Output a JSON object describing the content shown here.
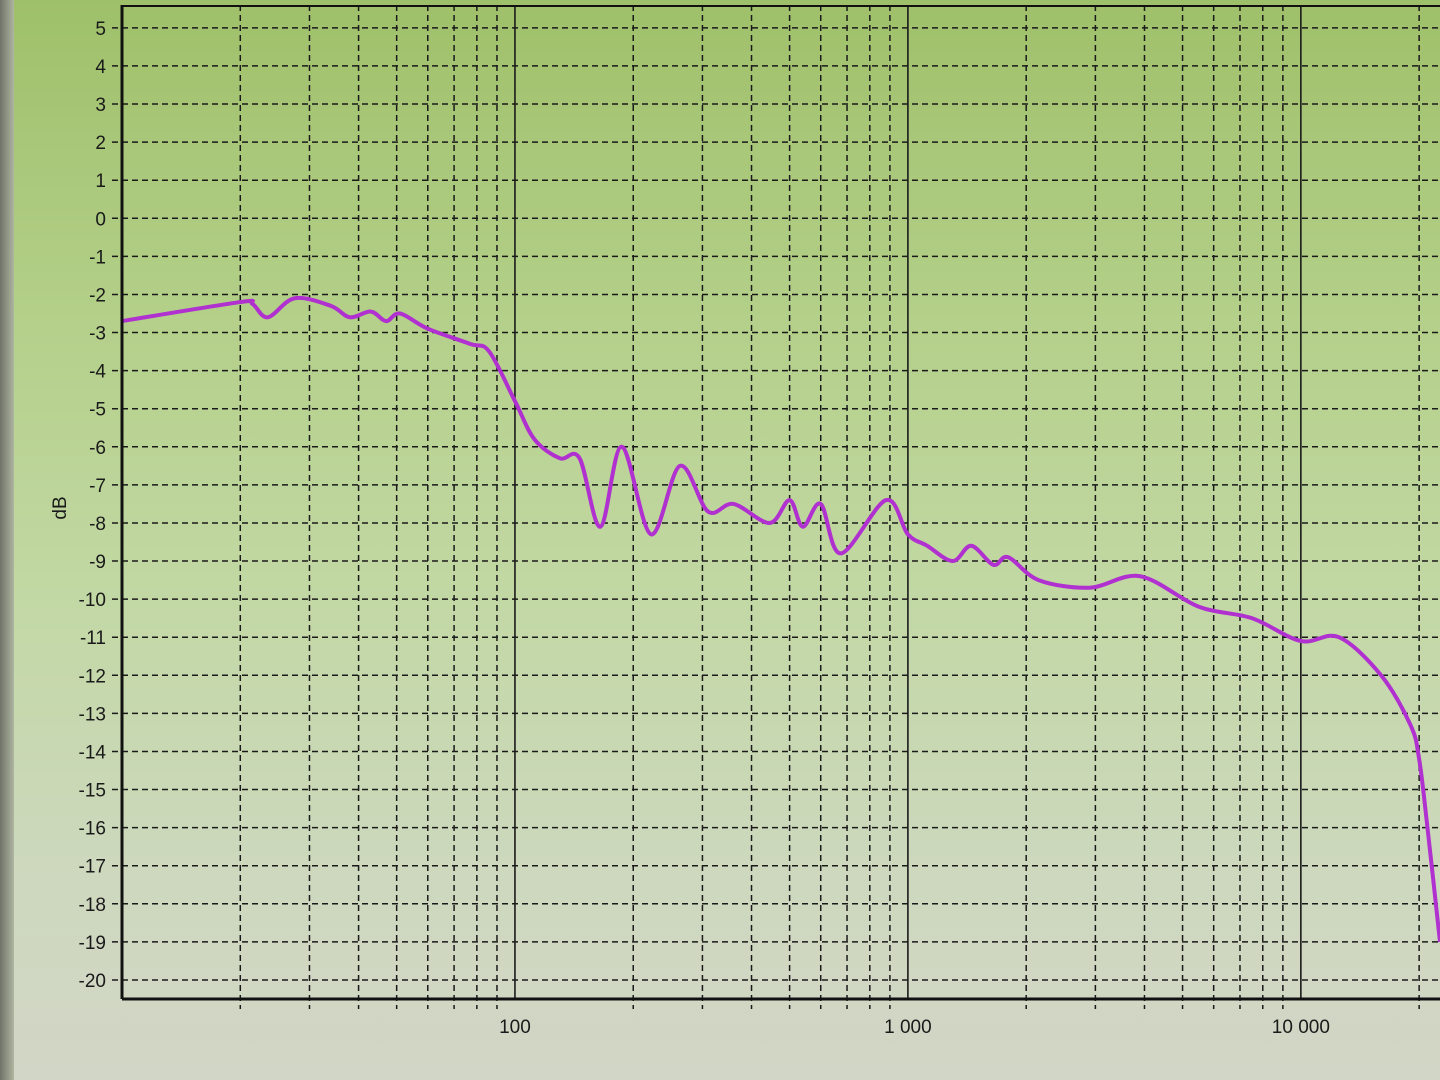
{
  "chart_data": {
    "type": "line",
    "title": "",
    "xlabel": "",
    "ylabel": "dB",
    "x_scale": "log",
    "xlim": [
      10,
      22600
    ],
    "ylim": [
      -20.5,
      5.6
    ],
    "grid": true,
    "x_tick_labels": [
      {
        "value": 100,
        "label": "100"
      },
      {
        "value": 1000,
        "label": "1 000"
      },
      {
        "value": 10000,
        "label": "10 000"
      }
    ],
    "y_ticks": [
      5,
      4,
      3,
      2,
      1,
      0,
      -1,
      -2,
      -3,
      -4,
      -5,
      -6,
      -7,
      -8,
      -9,
      -10,
      -11,
      -12,
      -13,
      -14,
      -15,
      -16,
      -17,
      -18,
      -19,
      -20
    ],
    "series": [
      {
        "color": "#b030d0",
        "x": [
          10,
          20,
          21.5,
          23.5,
          27.5,
          34,
          38,
          43,
          47,
          51,
          60,
          77,
          86,
          100,
          112,
          130,
          146,
          165,
          187,
          222,
          263,
          310,
          360,
          445,
          500,
          540,
          600,
          675,
          880,
          1000,
          1120,
          1300,
          1450,
          1650,
          1800,
          2150,
          2900,
          3900,
          5500,
          7500,
          10000,
          12500,
          16000,
          19000,
          20000,
          21000,
          22600
        ],
        "y": [
          -2.7,
          -2.2,
          -2.25,
          -2.6,
          -2.1,
          -2.3,
          -2.6,
          -2.45,
          -2.7,
          -2.5,
          -2.9,
          -3.3,
          -3.5,
          -4.8,
          -5.8,
          -6.3,
          -6.3,
          -8.1,
          -6.0,
          -8.3,
          -6.5,
          -7.7,
          -7.5,
          -8.0,
          -7.4,
          -8.1,
          -7.5,
          -8.8,
          -7.4,
          -8.3,
          -8.6,
          -9.0,
          -8.6,
          -9.1,
          -8.9,
          -9.5,
          -9.7,
          -9.4,
          -10.2,
          -10.5,
          -11.1,
          -11.0,
          -12.0,
          -13.3,
          -14.2,
          -16.0,
          -19.0
        ]
      }
    ],
    "colors": {
      "background_top": "#9fc06a",
      "background_bottom": "#d2d6c6",
      "grid": "#1a1a1a",
      "curve": "#b030d0"
    }
  }
}
